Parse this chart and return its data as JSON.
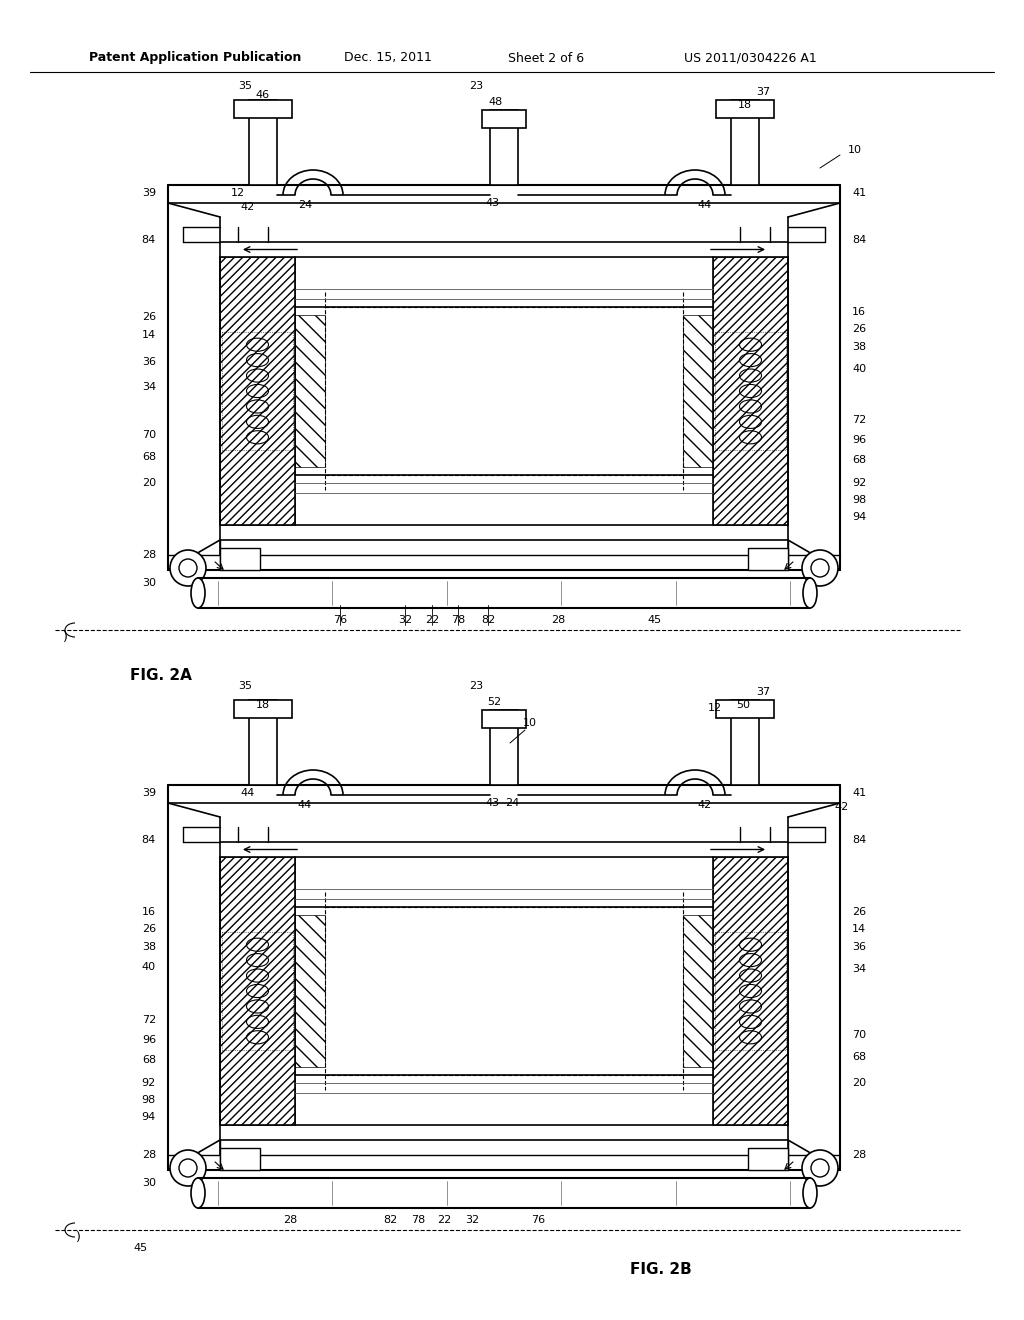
{
  "background_color": "#ffffff",
  "header_text": "Patent Application Publication",
  "header_date": "Dec. 15, 2011",
  "header_sheet": "Sheet 2 of 6",
  "header_patent": "US 2011/0304226 A1",
  "fig2a_label": "FIG. 2A",
  "fig2b_label": "FIG. 2B",
  "line_color": "#000000",
  "page_width": 10.24,
  "page_height": 13.2,
  "dpi": 100
}
